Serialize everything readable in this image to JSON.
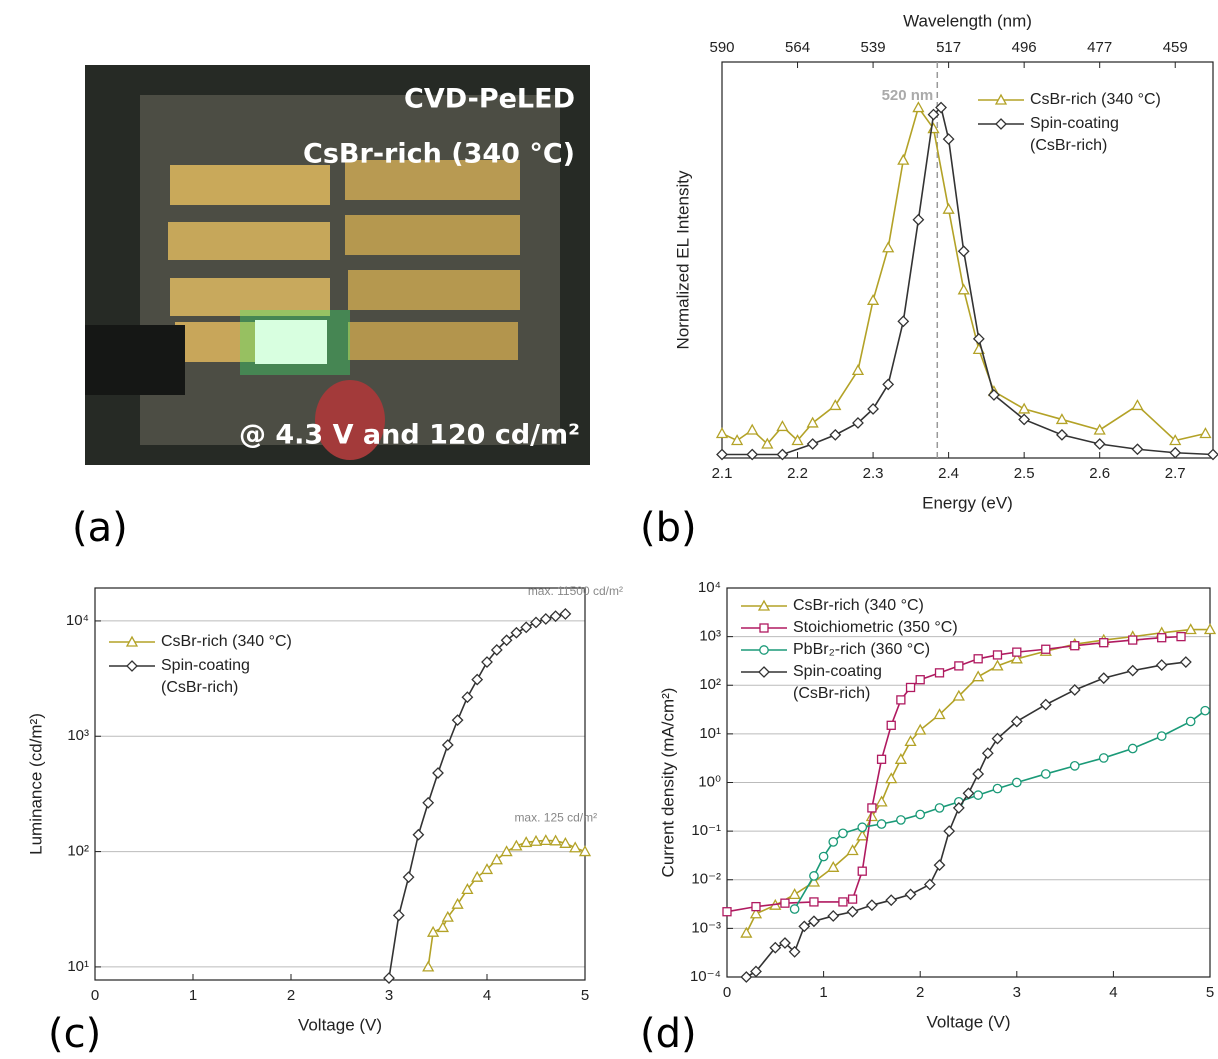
{
  "photo": {
    "texts": [
      "CVD-PeLED",
      "CsBr-rich (340 °C)",
      "@ 4.3 V and 120 cd/m²"
    ]
  },
  "panel_labels": [
    "(a)",
    "(b)",
    "(c)",
    "(d)"
  ],
  "chart_data": [
    {
      "type": "line",
      "xlabel": "Energy (eV)",
      "ylabel": "Normalized EL Intensity",
      "x2label": "Wavelength (nm)",
      "xlim": [
        2.1,
        2.75
      ],
      "ylim": [
        0,
        1.13
      ],
      "xticks": [
        2.1,
        2.2,
        2.3,
        2.4,
        2.5,
        2.6,
        2.7
      ],
      "x2ticks": [
        {
          "value": 2.1,
          "label": "590"
        },
        {
          "value": 2.2,
          "label": "564"
        },
        {
          "value": 2.3,
          "label": "539"
        },
        {
          "value": 2.4,
          "label": "517"
        },
        {
          "value": 2.5,
          "label": "496"
        },
        {
          "value": 2.6,
          "label": "477"
        },
        {
          "value": 2.7,
          "label": "459"
        }
      ],
      "log_y": false,
      "grid": false,
      "legend": "upper right",
      "annotations": [
        {
          "text": "520 nm",
          "x": 2.385
        }
      ],
      "series": [
        {
          "name": "CsBr-rich (340 °C)",
          "color": "#b3a227",
          "marker": "triangle",
          "x": [
            2.1,
            2.12,
            2.14,
            2.16,
            2.18,
            2.2,
            2.22,
            2.25,
            2.28,
            2.3,
            2.32,
            2.34,
            2.36,
            2.38,
            2.4,
            2.42,
            2.44,
            2.46,
            2.5,
            2.55,
            2.6,
            2.65,
            2.7,
            2.74
          ],
          "values": [
            0.07,
            0.05,
            0.08,
            0.04,
            0.09,
            0.05,
            0.1,
            0.15,
            0.25,
            0.45,
            0.6,
            0.85,
            1.0,
            0.94,
            0.71,
            0.48,
            0.31,
            0.19,
            0.14,
            0.11,
            0.08,
            0.15,
            0.05,
            0.07
          ]
        },
        {
          "name": "Spin-coating (CsBr-rich)",
          "color": "#333333",
          "marker": "diamond",
          "x": [
            2.1,
            2.14,
            2.18,
            2.22,
            2.25,
            2.28,
            2.3,
            2.32,
            2.34,
            2.36,
            2.38,
            2.39,
            2.4,
            2.42,
            2.44,
            2.46,
            2.5,
            2.55,
            2.6,
            2.65,
            2.7,
            2.75
          ],
          "values": [
            0.01,
            0.01,
            0.01,
            0.04,
            0.066,
            0.1,
            0.14,
            0.21,
            0.39,
            0.68,
            0.98,
            1.0,
            0.91,
            0.59,
            0.34,
            0.18,
            0.11,
            0.066,
            0.04,
            0.025,
            0.015,
            0.01
          ]
        }
      ]
    },
    {
      "type": "line",
      "xlabel": "Voltage (V)",
      "ylabel": "Luminance (cd/m²)",
      "xlim": [
        0,
        5
      ],
      "ylim": [
        7.7,
        19300
      ],
      "xticks": [
        0,
        1,
        2,
        3,
        4,
        5
      ],
      "yticks": [
        {
          "value": 10,
          "label": "10¹"
        },
        {
          "value": 100,
          "label": "10²"
        },
        {
          "value": 1000,
          "label": "10³"
        },
        {
          "value": 10000,
          "label": "10⁴"
        }
      ],
      "log_y": true,
      "grid": true,
      "legend": "upper left",
      "annotations": [
        "max. 125 cd/m²",
        "max. 11500 cd/m²"
      ],
      "series": [
        {
          "name": "CsBr-rich (340 °C)",
          "color": "#b3a227",
          "marker": "triangle",
          "x": [
            3.4,
            3.45,
            3.55,
            3.6,
            3.7,
            3.8,
            3.9,
            4.0,
            4.1,
            4.2,
            4.3,
            4.4,
            4.5,
            4.6,
            4.7,
            4.8,
            4.9,
            5.0
          ],
          "values": [
            10,
            20,
            22,
            27,
            35,
            47,
            60,
            70,
            85,
            100,
            112,
            120,
            123,
            125,
            124,
            118,
            108,
            100
          ]
        },
        {
          "name": "Spin-coating (CsBr-rich)",
          "color": "#333333",
          "marker": "diamond",
          "x": [
            3.0,
            3.1,
            3.2,
            3.3,
            3.4,
            3.5,
            3.6,
            3.7,
            3.8,
            3.9,
            4.0,
            4.1,
            4.2,
            4.3,
            4.4,
            4.5,
            4.6,
            4.7,
            4.8
          ],
          "values": [
            8,
            28,
            60,
            140,
            265,
            480,
            840,
            1380,
            2180,
            3100,
            4400,
            5600,
            6800,
            7900,
            8800,
            9700,
            10400,
            11000,
            11500
          ]
        }
      ]
    },
    {
      "type": "line",
      "xlabel": "Voltage (V)",
      "ylabel": "Current density (mA/cm²)",
      "xlim": [
        0,
        5
      ],
      "ylim": [
        0.0001,
        10000
      ],
      "xticks": [
        0,
        1,
        2,
        3,
        4,
        5
      ],
      "yticks": [
        {
          "value": 0.0001,
          "label": "10⁻⁴"
        },
        {
          "value": 0.001,
          "label": "10⁻³"
        },
        {
          "value": 0.01,
          "label": "10⁻²"
        },
        {
          "value": 0.1,
          "label": "10⁻¹"
        },
        {
          "value": 1,
          "label": "10⁰"
        },
        {
          "value": 10,
          "label": "10¹"
        },
        {
          "value": 100,
          "label": "10²"
        },
        {
          "value": 1000,
          "label": "10³"
        },
        {
          "value": 10000,
          "label": "10⁴"
        }
      ],
      "log_y": true,
      "grid": true,
      "legend": "upper left",
      "series": [
        {
          "name": "CsBr-rich (340 °C)",
          "color": "#b3a227",
          "marker": "triangle",
          "x": [
            0.2,
            0.3,
            0.5,
            0.7,
            0.9,
            1.1,
            1.3,
            1.4,
            1.5,
            1.6,
            1.7,
            1.8,
            1.9,
            2.0,
            2.2,
            2.4,
            2.6,
            2.8,
            3.0,
            3.3,
            3.6,
            3.9,
            4.2,
            4.5,
            4.8,
            5.0
          ],
          "values": [
            0.0008,
            0.002,
            0.003,
            0.005,
            0.009,
            0.018,
            0.04,
            0.08,
            0.2,
            0.4,
            1.2,
            3,
            7,
            12,
            25,
            60,
            150,
            250,
            350,
            500,
            700,
            850,
            1000,
            1200,
            1400,
            1400
          ]
        },
        {
          "name": "Stoichiometric (350 °C)",
          "color": "#b01a60",
          "marker": "square",
          "x": [
            0,
            0.3,
            0.6,
            0.9,
            1.2,
            1.3,
            1.4,
            1.5,
            1.6,
            1.7,
            1.8,
            1.9,
            2.0,
            2.2,
            2.4,
            2.6,
            2.8,
            3.0,
            3.3,
            3.6,
            3.9,
            4.2,
            4.5,
            4.7
          ],
          "values": [
            0.0022,
            0.0028,
            0.0033,
            0.0035,
            0.0035,
            0.004,
            0.015,
            0.3,
            3,
            15,
            50,
            90,
            130,
            180,
            250,
            350,
            420,
            480,
            550,
            650,
            750,
            850,
            950,
            1000
          ]
        },
        {
          "name": "PbBr₂-rich (360 °C)",
          "color": "#1b9a78",
          "marker": "circle",
          "x": [
            0.7,
            0.9,
            1.0,
            1.1,
            1.2,
            1.4,
            1.6,
            1.8,
            2.0,
            2.2,
            2.4,
            2.6,
            2.8,
            3.0,
            3.3,
            3.6,
            3.9,
            4.2,
            4.5,
            4.8,
            4.95
          ],
          "values": [
            0.0025,
            0.012,
            0.03,
            0.06,
            0.09,
            0.12,
            0.14,
            0.17,
            0.22,
            0.3,
            0.4,
            0.55,
            0.75,
            1.0,
            1.5,
            2.2,
            3.2,
            5,
            9,
            18,
            30
          ]
        },
        {
          "name": "Spin-coating (CsBr-rich)",
          "color": "#333333",
          "marker": "diamond",
          "x": [
            0.2,
            0.3,
            0.5,
            0.6,
            0.7,
            0.8,
            0.9,
            1.1,
            1.3,
            1.5,
            1.7,
            1.9,
            2.1,
            2.2,
            2.3,
            2.4,
            2.5,
            2.6,
            2.7,
            2.8,
            3.0,
            3.3,
            3.6,
            3.9,
            4.2,
            4.5,
            4.75
          ],
          "values": [
            0.0001,
            0.00013,
            0.0004,
            0.0005,
            0.00033,
            0.0011,
            0.0014,
            0.0018,
            0.0022,
            0.003,
            0.0038,
            0.005,
            0.008,
            0.02,
            0.1,
            0.3,
            0.6,
            1.5,
            4,
            8,
            18,
            40,
            80,
            140,
            200,
            260,
            300
          ]
        }
      ]
    }
  ]
}
